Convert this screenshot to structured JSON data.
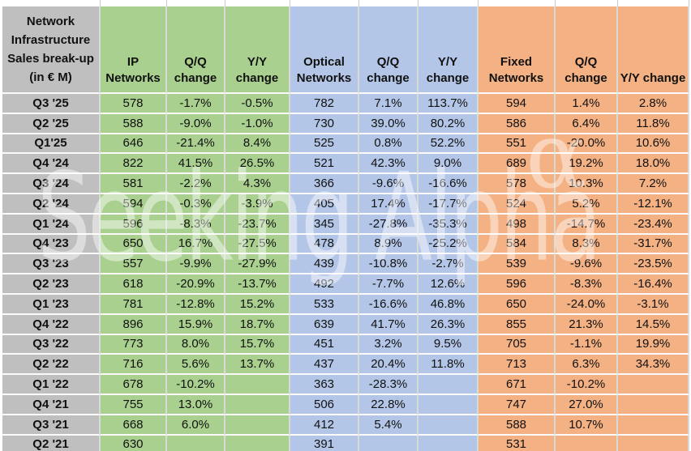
{
  "header": {
    "title_lines": [
      "Network",
      "Infrastructure",
      "Sales break-up",
      "(in € M)"
    ]
  },
  "watermark": {
    "text": "Seeking Alpha",
    "alpha_symbol": "α"
  },
  "colors": {
    "row_label_gray": "#bfbfbf",
    "ip_group_green": "#a9d08e",
    "optical_group_blue": "#b4c6e7",
    "fixed_group_orange": "#f4b183",
    "gridline": "#d8dad6",
    "text": "#111111"
  },
  "chart_data": {
    "type": "table",
    "title": "Network Infrastructure Sales break-up (in € M)",
    "columns": [
      "Network Infrastructure Sales break-up (in € M)",
      "IP Networks",
      "Q/Q change",
      "Y/Y change",
      "Optical Networks",
      "Q/Q change",
      "Y/Y change",
      "Fixed Networks",
      "Q/Q change",
      "Y/Y change"
    ],
    "rows": [
      [
        "Q3 '25",
        "578",
        "-1.7%",
        "-0.5%",
        "782",
        "7.1%",
        "113.7%",
        "594",
        "1.4%",
        "2.8%"
      ],
      [
        "Q2 '25",
        "588",
        "-9.0%",
        "-1.0%",
        "730",
        "39.0%",
        "80.2%",
        "586",
        "6.4%",
        "11.8%"
      ],
      [
        "Q1'25",
        "646",
        "-21.4%",
        "8.4%",
        "525",
        "0.8%",
        "52.2%",
        "551",
        "-20.0%",
        "10.6%"
      ],
      [
        "Q4 '24",
        "822",
        "41.5%",
        "26.5%",
        "521",
        "42.3%",
        "9.0%",
        "689",
        "19.2%",
        "18.0%"
      ],
      [
        "Q3 '24",
        "581",
        "-2.2%",
        "4.3%",
        "366",
        "-9.6%",
        "-16.6%",
        "578",
        "10.3%",
        "7.2%"
      ],
      [
        "Q2 '24",
        "594",
        "-0.3%",
        "-3.9%",
        "405",
        "17.4%",
        "-17.7%",
        "524",
        "5.2%",
        "-12.1%"
      ],
      [
        "Q1 '24",
        "596",
        "-8.3%",
        "-23.7%",
        "345",
        "-27.8%",
        "-35.3%",
        "498",
        "-14.7%",
        "-23.4%"
      ],
      [
        "Q4 '23",
        "650",
        "16.7%",
        "-27.5%",
        "478",
        "8.9%",
        "-25.2%",
        "584",
        "8.3%",
        "-31.7%"
      ],
      [
        "Q3 '23",
        "557",
        "-9.9%",
        "-27.9%",
        "439",
        "-10.8%",
        "-2.7%",
        "539",
        "-9.6%",
        "-23.5%"
      ],
      [
        "Q2 '23",
        "618",
        "-20.9%",
        "-13.7%",
        "492",
        "-7.7%",
        "12.6%",
        "596",
        "-8.3%",
        "-16.4%"
      ],
      [
        "Q1 '23",
        "781",
        "-12.8%",
        "15.2%",
        "533",
        "-16.6%",
        "46.8%",
        "650",
        "-24.0%",
        "-3.1%"
      ],
      [
        "Q4 '22",
        "896",
        "15.9%",
        "18.7%",
        "639",
        "41.7%",
        "26.3%",
        "855",
        "21.3%",
        "14.5%"
      ],
      [
        "Q3 '22",
        "773",
        "8.0%",
        "15.7%",
        "451",
        "3.2%",
        "9.5%",
        "705",
        "-1.1%",
        "19.9%"
      ],
      [
        "Q2 '22",
        "716",
        "5.6%",
        "13.7%",
        "437",
        "20.4%",
        "11.8%",
        "713",
        "6.3%",
        "34.3%"
      ],
      [
        "Q1 '22",
        "678",
        "-10.2%",
        "",
        "363",
        "-28.3%",
        "",
        "671",
        "-10.2%",
        ""
      ],
      [
        "Q4 '21",
        "755",
        "13.0%",
        "",
        "506",
        "22.8%",
        "",
        "747",
        "27.0%",
        ""
      ],
      [
        "Q3 '21",
        "668",
        "6.0%",
        "",
        "412",
        "5.4%",
        "",
        "588",
        "10.7%",
        ""
      ],
      [
        "Q2 '21",
        "630",
        "",
        "",
        "391",
        "",
        "",
        "531",
        "",
        ""
      ]
    ]
  }
}
